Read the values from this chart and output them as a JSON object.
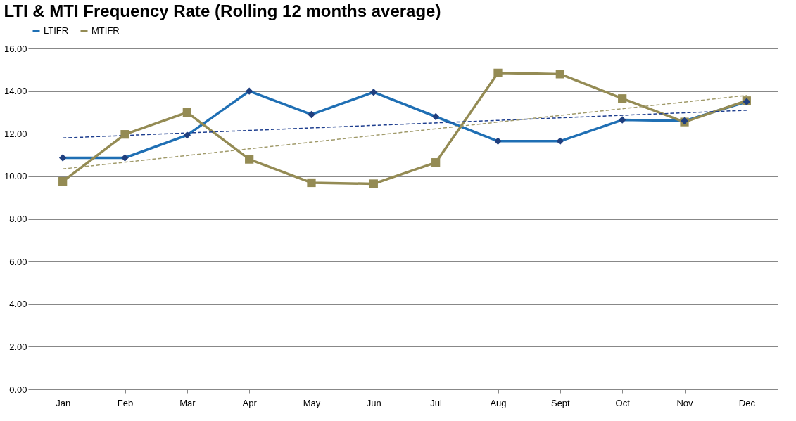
{
  "chart_data": {
    "type": "line",
    "title": "LTI & MTI Frequency Rate (Rolling 12 months average)",
    "categories": [
      "Jan",
      "Feb",
      "Mar",
      "Apr",
      "May",
      "Jun",
      "Jul",
      "Aug",
      "Sept",
      "Oct",
      "Nov",
      "Dec"
    ],
    "series": [
      {
        "name": "LTIFR",
        "color": "#1f6fb4",
        "marker": "diamond",
        "values": [
          10.87,
          10.87,
          11.93,
          14.0,
          12.9,
          13.95,
          12.8,
          11.65,
          11.65,
          12.65,
          12.6,
          13.5
        ]
      },
      {
        "name": "MTIFR",
        "color": "#948b54",
        "marker": "square",
        "values": [
          9.76,
          11.97,
          13.0,
          10.8,
          9.7,
          9.65,
          10.65,
          14.85,
          14.8,
          13.65,
          12.55,
          13.55
        ]
      },
      {
        "type": "line",
        "color": "#1f3f8f",
        "line_style": "dashed",
        "marker": "none",
        "x": [
          "Jan",
          "Dec"
        ],
        "values": [
          11.8,
          13.1
        ]
      },
      {
        "type": "line",
        "color": "#a09a6a",
        "line_style": "dashed",
        "marker": "none",
        "x": [
          "Jan",
          "Dec"
        ],
        "values": [
          10.35,
          13.8
        ]
      }
    ],
    "ylim": [
      0,
      16
    ],
    "yticks": [
      {
        "value": 0,
        "label": "0.00"
      },
      {
        "value": 2,
        "label": "2.00"
      },
      {
        "value": 4,
        "label": "4.00"
      },
      {
        "value": 6,
        "label": "6.00"
      },
      {
        "value": 8,
        "label": "8.00"
      },
      {
        "value": 10,
        "label": "10.00"
      },
      {
        "value": 12,
        "label": "12.00"
      },
      {
        "value": 14,
        "label": "14.00"
      },
      {
        "value": 16,
        "label": "16.00"
      }
    ],
    "grid": "y",
    "legend": "top"
  }
}
